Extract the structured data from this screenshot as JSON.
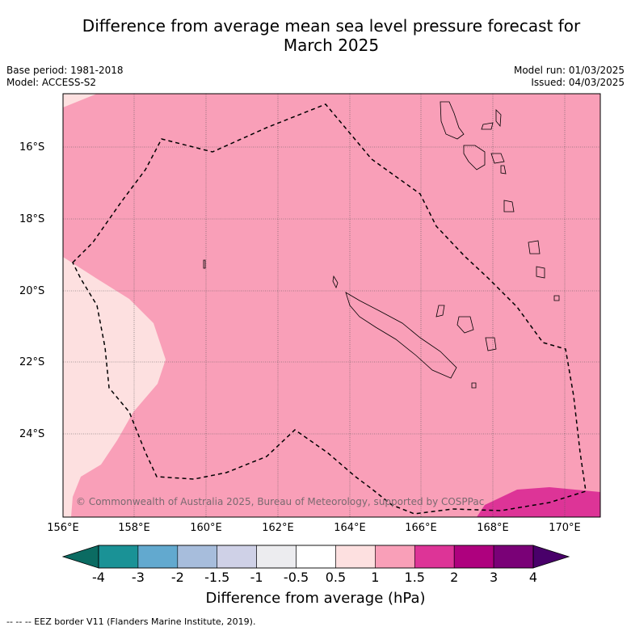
{
  "title_line1": "Difference from average mean sea level pressure forecast for",
  "title_line2": "March 2025",
  "base_period": "Base period: 1981-2018",
  "model": "Model: ACCESS-S2",
  "model_run": "Model run: 01/03/2025",
  "issued": "Issued: 04/03/2025",
  "lat_labels": [
    "16°S",
    "18°S",
    "20°S",
    "22°S",
    "24°S"
  ],
  "lon_labels": [
    "156°E",
    "158°E",
    "160°E",
    "162°E",
    "164°E",
    "166°E",
    "168°E",
    "170°E"
  ],
  "copyright": "© Commonwealth of Australia 2025, Bureau of Meteorology, supported by COSPPac",
  "colorbar": {
    "ticks": [
      "-4",
      "-3",
      "-2",
      "-1.5",
      "-1",
      "-0.5",
      "0.5",
      "1",
      "1.5",
      "2",
      "3",
      "4"
    ],
    "colors": [
      "#1a9296",
      "#62a9cf",
      "#a7bddc",
      "#cfd1e7",
      "#ececef",
      "#ffffff",
      "#fde0e0",
      "#f99fb8",
      "#dd3497",
      "#ae017e",
      "#7a0177"
    ],
    "min_extend_color": "#0b6b62",
    "max_extend_color": "#49006a",
    "label": "Difference from average (hPa)"
  },
  "map_colors": {
    "background": "#f99fb8",
    "light_region": "#fde0e0",
    "strong_region": "#dd3497"
  },
  "footer": "--  --  -- EEZ border V11 (Flanders Marine Institute, 2019)."
}
